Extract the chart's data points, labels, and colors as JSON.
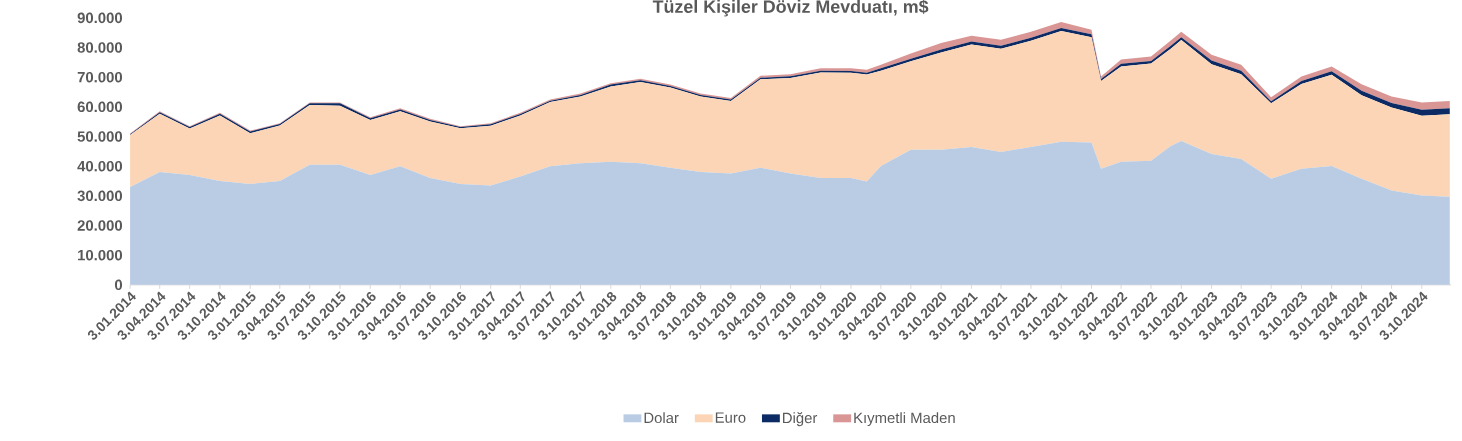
{
  "chart_data": {
    "type": "area",
    "title": "Tüzel Kişiler Döviz Mevduatı, m$",
    "stacked": true,
    "legend": "bottom",
    "x": [
      "2014-01-03",
      "2014-04-03",
      "2014-07-03",
      "2014-10-03",
      "2015-01-03",
      "2015-04-03",
      "2015-07-03",
      "2015-10-03",
      "2016-01-03",
      "2016-04-03",
      "2016-07-03",
      "2016-10-03",
      "2017-01-03",
      "2017-04-03",
      "2017-07-03",
      "2017-10-03",
      "2018-01-03",
      "2018-04-03",
      "2018-07-03",
      "2018-10-03",
      "2019-01-03",
      "2019-04-03",
      "2019-07-03",
      "2019-10-03",
      "2020-01-03",
      "2020-02-20",
      "2020-04-03",
      "2020-07-03",
      "2020-10-03",
      "2021-01-03",
      "2021-04-03",
      "2021-07-03",
      "2021-10-03",
      "2022-01-03",
      "2022-02-01",
      "2022-04-03",
      "2022-07-03",
      "2022-09-01",
      "2022-10-03",
      "2023-01-03",
      "2023-04-03",
      "2023-07-03",
      "2023-10-03",
      "2024-01-03",
      "2024-04-03",
      "2024-07-03",
      "2024-10-03",
      "2024-12-27"
    ],
    "series": [
      {
        "name": "Dolar",
        "color": "#b9cce4",
        "values": [
          33000,
          38000,
          37000,
          35000,
          34000,
          35000,
          40500,
          40500,
          37000,
          40000,
          36000,
          34000,
          33500,
          36500,
          40000,
          41000,
          41500,
          41000,
          39500,
          38000,
          37500,
          39500,
          37500,
          36000,
          36000,
          34800,
          40100,
          45500,
          45500,
          46500,
          44800,
          46500,
          48200,
          48000,
          39100,
          41500,
          41800,
          46800,
          48500,
          44100,
          42400,
          35800,
          39100,
          40100,
          35800,
          31800,
          30100,
          29700
        ]
      },
      {
        "name": "Euro",
        "color": "#fbd5b5",
        "values": [
          17500,
          19700,
          15700,
          22100,
          17100,
          18700,
          20100,
          19900,
          18600,
          18500,
          19100,
          18800,
          20100,
          20600,
          21600,
          22500,
          25400,
          27400,
          27000,
          25500,
          24500,
          29800,
          32200,
          35600,
          35500,
          36100,
          32100,
          29900,
          32800,
          34500,
          34800,
          35800,
          37400,
          35500,
          29600,
          32100,
          32800,
          32800,
          34000,
          30300,
          28600,
          25400,
          28600,
          30700,
          28100,
          28000,
          26900,
          27800
        ]
      },
      {
        "name": "Diğer",
        "color": "#0c2a63",
        "values": [
          300,
          500,
          500,
          600,
          600,
          500,
          600,
          800,
          600,
          600,
          500,
          400,
          500,
          500,
          500,
          500,
          600,
          600,
          500,
          500,
          500,
          500,
          600,
          600,
          600,
          600,
          800,
          800,
          1000,
          1000,
          1000,
          1000,
          1000,
          1000,
          700,
          900,
          900,
          1000,
          1000,
          1200,
          1200,
          700,
          1000,
          1200,
          1500,
          1500,
          2000,
          2000
        ]
      },
      {
        "name": "Kıymetli Maden",
        "color": "#d99694",
        "values": [
          200,
          300,
          300,
          300,
          300,
          300,
          300,
          300,
          300,
          400,
          400,
          300,
          400,
          400,
          400,
          500,
          500,
          500,
          500,
          500,
          500,
          700,
          700,
          800,
          900,
          1000,
          1200,
          1800,
          2200,
          2000,
          2000,
          2000,
          2000,
          1500,
          800,
          1500,
          1500,
          1800,
          1800,
          2000,
          2000,
          1300,
          1500,
          1600,
          2200,
          2200,
          2500,
          2500
        ]
      }
    ],
    "ylim": [
      0,
      90000
    ],
    "yticks": [
      {
        "value": 0,
        "label": "0"
      },
      {
        "value": 10000,
        "label": "10.000"
      },
      {
        "value": 20000,
        "label": "20.000"
      },
      {
        "value": 30000,
        "label": "30.000"
      },
      {
        "value": 40000,
        "label": "40.000"
      },
      {
        "value": 50000,
        "label": "50.000"
      },
      {
        "value": 60000,
        "label": "60.000"
      },
      {
        "value": 70000,
        "label": "70.000"
      },
      {
        "value": 80000,
        "label": "80.000"
      },
      {
        "value": 90000,
        "label": "90.000"
      }
    ],
    "xlim": [
      "2014-01-03",
      "2024-12-31"
    ],
    "xticks": [
      {
        "value": "2014-01-03",
        "label": "3.01.2014"
      },
      {
        "value": "2014-04-03",
        "label": "3.04.2014"
      },
      {
        "value": "2014-07-03",
        "label": "3.07.2014"
      },
      {
        "value": "2014-10-03",
        "label": "3.10.2014"
      },
      {
        "value": "2015-01-03",
        "label": "3.01.2015"
      },
      {
        "value": "2015-04-03",
        "label": "3.04.2015"
      },
      {
        "value": "2015-07-03",
        "label": "3.07.2015"
      },
      {
        "value": "2015-10-03",
        "label": "3.10.2015"
      },
      {
        "value": "2016-01-03",
        "label": "3.01.2016"
      },
      {
        "value": "2016-04-03",
        "label": "3.04.2016"
      },
      {
        "value": "2016-07-03",
        "label": "3.07.2016"
      },
      {
        "value": "2016-10-03",
        "label": "3.10.2016"
      },
      {
        "value": "2017-01-03",
        "label": "3.01.2017"
      },
      {
        "value": "2017-04-03",
        "label": "3.04.2017"
      },
      {
        "value": "2017-07-03",
        "label": "3.07.2017"
      },
      {
        "value": "2017-10-03",
        "label": "3.10.2017"
      },
      {
        "value": "2018-01-03",
        "label": "3.01.2018"
      },
      {
        "value": "2018-04-03",
        "label": "3.04.2018"
      },
      {
        "value": "2018-07-03",
        "label": "3.07.2018"
      },
      {
        "value": "2018-10-03",
        "label": "3.10.2018"
      },
      {
        "value": "2019-01-03",
        "label": "3.01.2019"
      },
      {
        "value": "2019-04-03",
        "label": "3.04.2019"
      },
      {
        "value": "2019-07-03",
        "label": "3.07.2019"
      },
      {
        "value": "2019-10-03",
        "label": "3.10.2019"
      },
      {
        "value": "2020-01-03",
        "label": "3.01.2020"
      },
      {
        "value": "2020-04-03",
        "label": "3.04.2020"
      },
      {
        "value": "2020-07-03",
        "label": "3.07.2020"
      },
      {
        "value": "2020-10-03",
        "label": "3.10.2020"
      },
      {
        "value": "2021-01-03",
        "label": "3.01.2021"
      },
      {
        "value": "2021-04-03",
        "label": "3.04.2021"
      },
      {
        "value": "2021-07-03",
        "label": "3.07.2021"
      },
      {
        "value": "2021-10-03",
        "label": "3.10.2021"
      },
      {
        "value": "2022-01-03",
        "label": "3.01.2022"
      },
      {
        "value": "2022-04-03",
        "label": "3.04.2022"
      },
      {
        "value": "2022-07-03",
        "label": "3.07.2022"
      },
      {
        "value": "2022-10-03",
        "label": "3.10.2022"
      },
      {
        "value": "2023-01-03",
        "label": "3.01.2023"
      },
      {
        "value": "2023-04-03",
        "label": "3.04.2023"
      },
      {
        "value": "2023-07-03",
        "label": "3.07.2023"
      },
      {
        "value": "2023-10-03",
        "label": "3.10.2023"
      },
      {
        "value": "2024-01-03",
        "label": "3.01.2024"
      },
      {
        "value": "2024-04-03",
        "label": "3.04.2024"
      },
      {
        "value": "2024-07-03",
        "label": "3.07.2024"
      },
      {
        "value": "2024-10-03",
        "label": "3.10.2024"
      }
    ]
  }
}
